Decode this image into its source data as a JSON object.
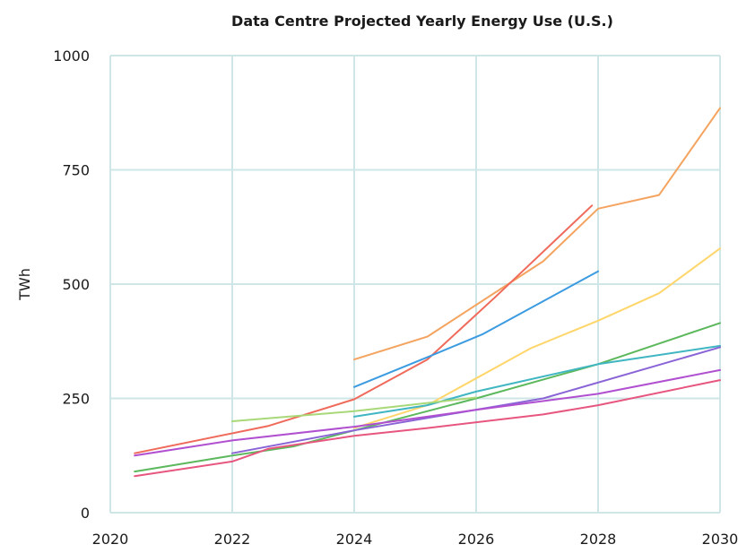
{
  "chart_data": {
    "type": "line",
    "title": "Data Centre Projected Yearly Energy Use (U.S.)",
    "xlabel": "",
    "ylabel": "TWh",
    "xlim": [
      2020,
      2030
    ],
    "ylim": [
      0,
      1000
    ],
    "x_ticks": [
      2020,
      2022,
      2024,
      2026,
      2028,
      2030
    ],
    "y_ticks": [
      0,
      250,
      500,
      750,
      1000
    ],
    "grid": true,
    "legend": "none",
    "series": [
      {
        "color": "#f4a460",
        "points": [
          [
            2024,
            335
          ],
          [
            2025.2,
            385
          ],
          [
            2027.1,
            550
          ],
          [
            2028,
            665
          ],
          [
            2029,
            695
          ],
          [
            2030,
            885
          ]
        ]
      },
      {
        "color": "#ef6a5a",
        "points": [
          [
            2020.4,
            130
          ],
          [
            2022.6,
            190
          ],
          [
            2024,
            248
          ],
          [
            2025.2,
            335
          ],
          [
            2026.3,
            470
          ],
          [
            2027.9,
            672
          ]
        ]
      },
      {
        "color": "#3b9be0",
        "points": [
          [
            2024,
            275
          ],
          [
            2025.2,
            340
          ],
          [
            2026.1,
            390
          ],
          [
            2028,
            528
          ]
        ]
      },
      {
        "color": "#ffd66b",
        "points": [
          [
            2024,
            185
          ],
          [
            2025.2,
            235
          ],
          [
            2026.9,
            360
          ],
          [
            2028,
            420
          ],
          [
            2029,
            480
          ],
          [
            2030,
            578
          ]
        ]
      },
      {
        "color": "#5cb85c",
        "points": [
          [
            2020.4,
            90
          ],
          [
            2022,
            125
          ],
          [
            2023,
            145
          ],
          [
            2024,
            180
          ],
          [
            2026,
            250
          ],
          [
            2028,
            325
          ],
          [
            2030,
            415
          ]
        ]
      },
      {
        "color": "#3fb6c2",
        "points": [
          [
            2024,
            210
          ],
          [
            2025.2,
            235
          ],
          [
            2026,
            265
          ],
          [
            2028,
            325
          ],
          [
            2030,
            365
          ]
        ]
      },
      {
        "color": "#a8d878",
        "points": [
          [
            2022,
            200
          ],
          [
            2024,
            222
          ],
          [
            2026,
            252
          ]
        ]
      },
      {
        "color": "#8a64d6",
        "points": [
          [
            2022,
            130
          ],
          [
            2024,
            180
          ],
          [
            2027.1,
            250
          ],
          [
            2030,
            362
          ]
        ]
      },
      {
        "color": "#b050d0",
        "points": [
          [
            2020.4,
            125
          ],
          [
            2022,
            158
          ],
          [
            2024,
            188
          ],
          [
            2026,
            225
          ],
          [
            2028,
            260
          ],
          [
            2030,
            312
          ]
        ]
      },
      {
        "color": "#e7567f",
        "points": [
          [
            2020.4,
            80
          ],
          [
            2022,
            112
          ],
          [
            2022.6,
            140
          ],
          [
            2024,
            168
          ],
          [
            2025.2,
            185
          ],
          [
            2027.1,
            215
          ],
          [
            2028,
            235
          ],
          [
            2030,
            290
          ]
        ]
      }
    ]
  }
}
